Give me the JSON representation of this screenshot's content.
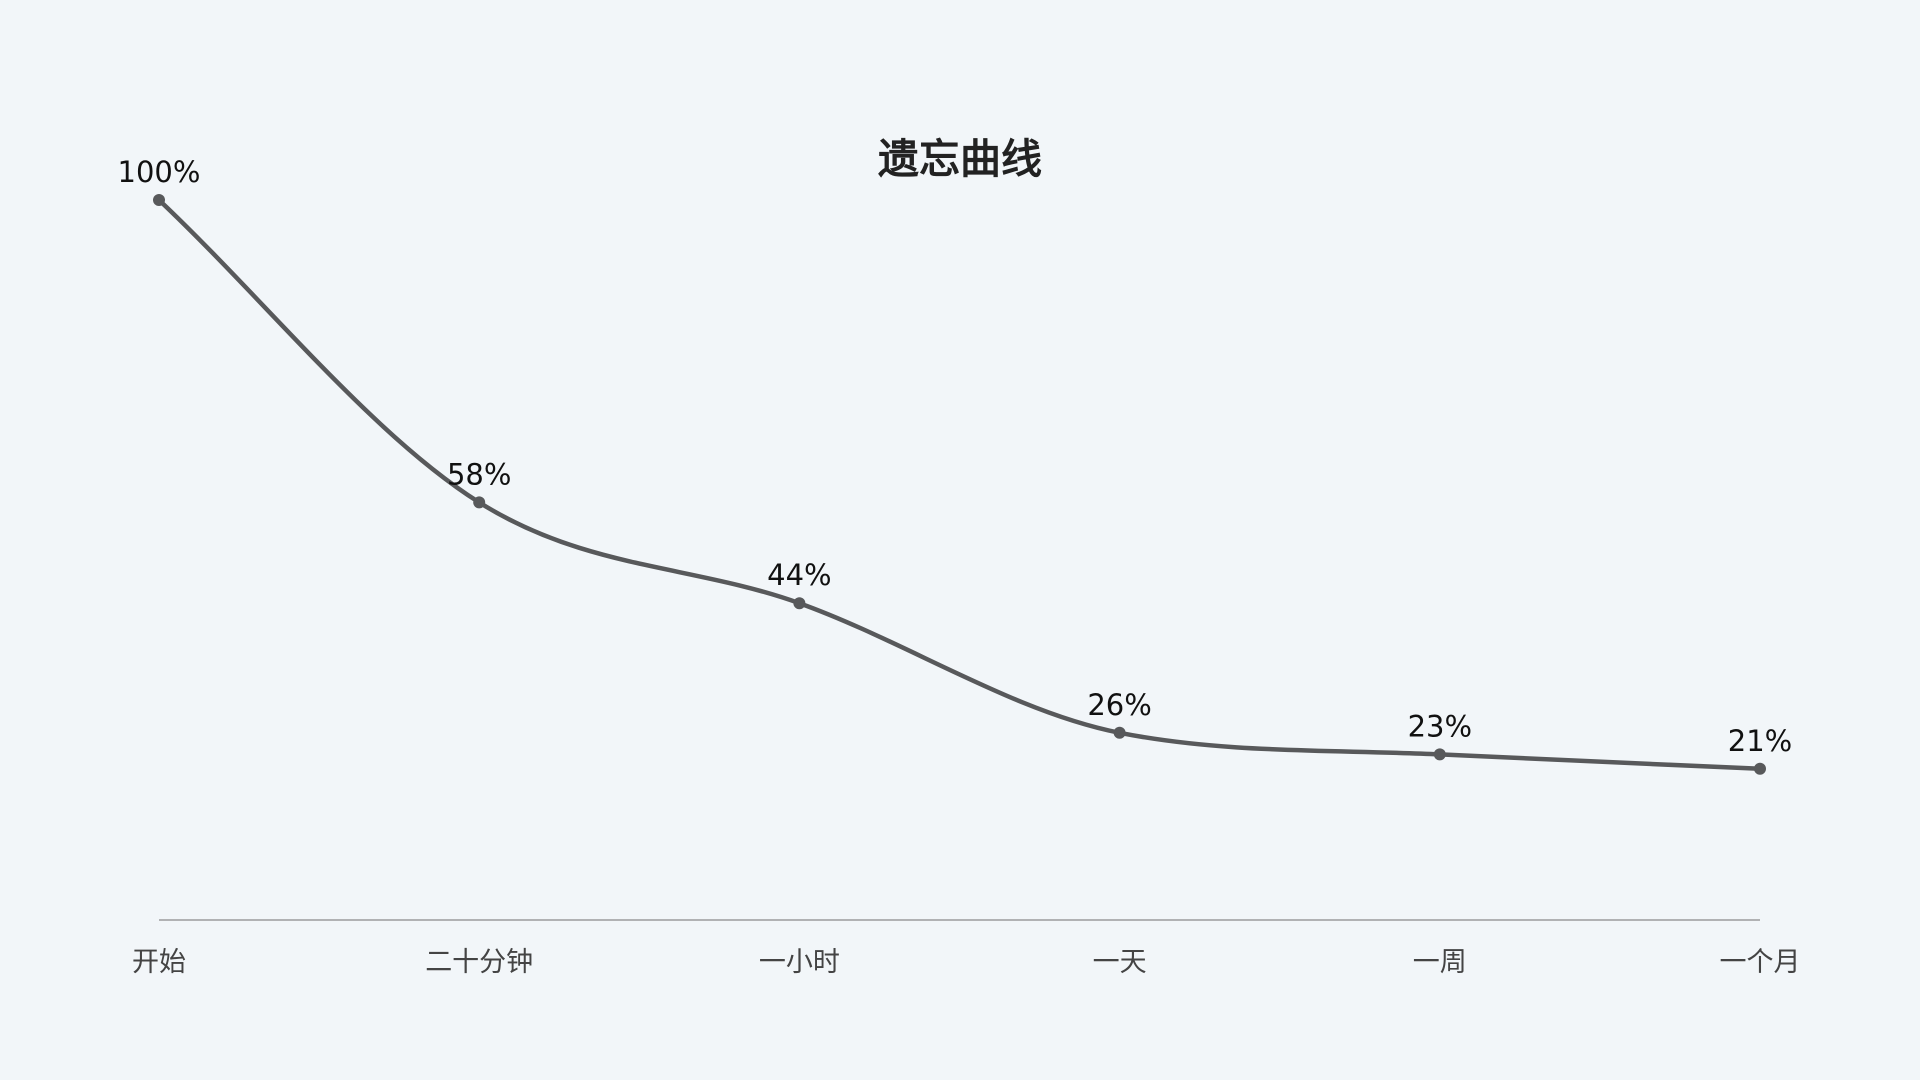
{
  "chart_data": {
    "type": "line",
    "title": "遗忘曲线",
    "categories": [
      "开始",
      "二十分钟",
      "一小时",
      "一天",
      "一周",
      "一个月"
    ],
    "values": [
      100,
      58,
      44,
      26,
      23,
      21
    ],
    "value_labels": [
      "100%",
      "58%",
      "44%",
      "26%",
      "23%",
      "21%"
    ],
    "xlabel": "",
    "ylabel": "",
    "ylim": [
      0,
      100
    ],
    "smooth": true,
    "grid": false,
    "legend": "none",
    "line_color": "#58595b",
    "axis_color": "#8a8a8a"
  },
  "colors": {
    "background": "#f2f6f9",
    "title": "#222222",
    "data_label": "#111111",
    "tick_label": "#444444"
  }
}
